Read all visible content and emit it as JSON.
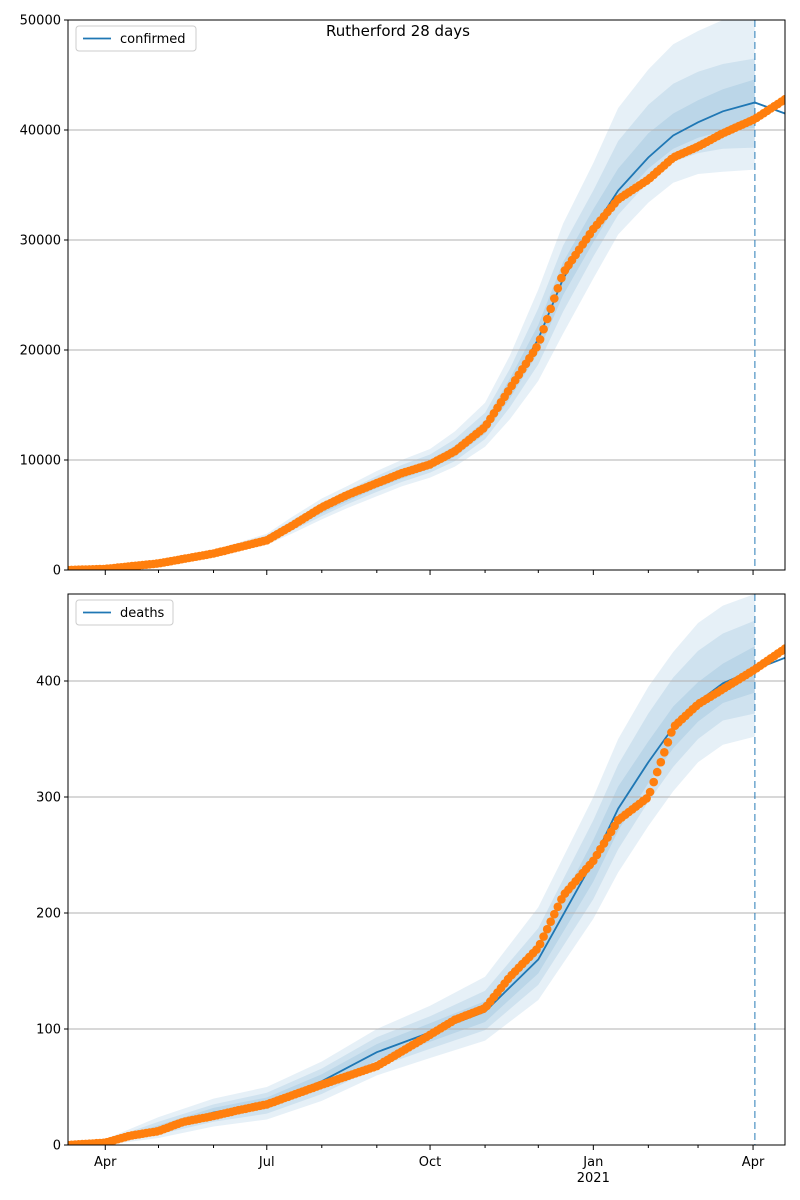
{
  "suptitle": "Rutherford 28 days",
  "colors": {
    "model": "#1f77b4",
    "observed": "#ff7f0e",
    "band": "#1f77b4",
    "grid": "#b0b0b0",
    "forecast_line": "#1f77b4"
  },
  "x_axis": {
    "range": [
      "2020-03-11",
      "2021-04-19"
    ],
    "major_ticks": [
      {
        "date": "2020-04-01",
        "label": "Apr"
      },
      {
        "date": "2020-07-01",
        "label": "Jul"
      },
      {
        "date": "2020-10-01",
        "label": "Oct"
      },
      {
        "date": "2021-01-01",
        "label": "Jan"
      },
      {
        "date": "2021-04-01",
        "label": "Apr"
      }
    ],
    "year_label": {
      "date": "2021-01-01",
      "label": "2021"
    }
  },
  "forecast_start": "2021-04-02",
  "chart_data": [
    {
      "type": "line",
      "legend": "confirmed",
      "legend_position": "top-left",
      "ylim": [
        0,
        50000
      ],
      "yticks": [
        "0",
        "10000",
        "20000",
        "30000",
        "40000",
        "50000"
      ],
      "grid": "horizontal",
      "model": {
        "x": [
          "2020-03-11",
          "2020-04-01",
          "2020-05-01",
          "2020-06-01",
          "2020-07-01",
          "2020-07-15",
          "2020-08-01",
          "2020-08-15",
          "2020-09-01",
          "2020-09-15",
          "2020-10-01",
          "2020-10-15",
          "2020-11-01",
          "2020-11-15",
          "2020-12-01",
          "2020-12-15",
          "2021-01-01",
          "2021-01-15",
          "2021-02-01",
          "2021-02-15",
          "2021-03-01",
          "2021-03-15",
          "2021-04-02",
          "2021-04-19"
        ],
        "y": [
          0,
          100,
          600,
          1500,
          2800,
          4000,
          5500,
          6500,
          7800,
          8700,
          9600,
          10800,
          13000,
          16500,
          21000,
          26500,
          31000,
          34500,
          37500,
          39500,
          40700,
          41700,
          42500,
          41500
        ],
        "bands": [
          {
            "lower": [
              0,
              50,
              450,
              1200,
              2300,
              3300,
              4600,
              5600,
              6700,
              7600,
              8400,
              9400,
              11200,
              13700,
              17200,
              21500,
              26500,
              30500,
              33400,
              35200,
              36000,
              36200,
              36400,
              null
            ],
            "upper": [
              0,
              160,
              780,
              1800,
              3300,
              4800,
              6500,
              7600,
              9000,
              10000,
              11000,
              12600,
              15200,
              19500,
              25500,
              31500,
              37000,
              42000,
              45500,
              47800,
              49000,
              50000,
              50500,
              null
            ]
          },
          {
            "lower": [
              0,
              65,
              500,
              1300,
              2450,
              3550,
              4900,
              5950,
              7100,
              8000,
              8850,
              9900,
              11900,
              14800,
              18700,
              23500,
              28500,
              32300,
              35300,
              37100,
              37900,
              38300,
              38400,
              null
            ],
            "upper": [
              0,
              140,
              720,
              1700,
              3150,
              4500,
              6100,
              7200,
              8550,
              9550,
              10500,
              11900,
              14300,
              18300,
              23800,
              29500,
              34500,
              39000,
              42300,
              44200,
              45300,
              46000,
              46500,
              null
            ]
          },
          {
            "lower": [
              0,
              80,
              550,
              1400,
              2600,
              3750,
              5150,
              6200,
              7450,
              8300,
              9200,
              10300,
              12400,
              15600,
              19800,
              25000,
              29800,
              33500,
              36500,
              38300,
              39300,
              39900,
              40200,
              null
            ],
            "upper": [
              0,
              120,
              660,
              1600,
              3000,
              4250,
              5850,
              6850,
              8150,
              9100,
              10000,
              11300,
              13600,
              17400,
              22300,
              28000,
              32800,
              36500,
              39700,
              41500,
              42700,
              43700,
              44600,
              null
            ]
          }
        ]
      },
      "observed": {
        "x": [
          "2020-03-11",
          "2020-04-01",
          "2020-05-01",
          "2020-06-01",
          "2020-07-01",
          "2020-07-15",
          "2020-08-01",
          "2020-08-15",
          "2020-09-01",
          "2020-09-15",
          "2020-10-01",
          "2020-10-15",
          "2020-11-01",
          "2020-11-15",
          "2020-12-01",
          "2020-12-15",
          "2021-01-01",
          "2021-01-15",
          "2021-02-01",
          "2021-02-15",
          "2021-03-01",
          "2021-03-15",
          "2021-04-02",
          "2021-04-19"
        ],
        "y": [
          0,
          100,
          600,
          1500,
          2700,
          4000,
          5700,
          6800,
          7900,
          8800,
          9600,
          10800,
          13000,
          16500,
          20500,
          27000,
          31000,
          33700,
          35500,
          37500,
          38500,
          39700,
          41000,
          42800
        ]
      }
    },
    {
      "type": "line",
      "legend": "deaths",
      "legend_position": "top-left",
      "ylim": [
        0,
        475
      ],
      "yticks": [
        "0",
        "100",
        "200",
        "300",
        "400"
      ],
      "grid": "horizontal",
      "model": {
        "x": [
          "2020-03-11",
          "2020-04-01",
          "2020-05-01",
          "2020-06-01",
          "2020-07-01",
          "2020-08-01",
          "2020-09-01",
          "2020-10-01",
          "2020-11-01",
          "2020-12-01",
          "2021-01-01",
          "2021-01-15",
          "2021-02-01",
          "2021-02-15",
          "2021-03-01",
          "2021-03-15",
          "2021-04-02",
          "2021-04-19"
        ],
        "y": [
          0,
          2,
          14,
          28,
          36,
          55,
          80,
          97,
          115,
          160,
          245,
          290,
          330,
          360,
          382,
          398,
          410,
          420
        ],
        "bands": [
          {
            "lower": [
              0,
              0,
              6,
              16,
              22,
              38,
              60,
              75,
              90,
              125,
              195,
              235,
              275,
              305,
              330,
              345,
              352,
              null
            ],
            "upper": [
              0,
              5,
              24,
              40,
              50,
              72,
              100,
              120,
              145,
              205,
              300,
              350,
              395,
              425,
              450,
              465,
              475,
              null
            ]
          },
          {
            "lower": [
              0,
              1,
              9,
              20,
              27,
              44,
              67,
              83,
              99,
              138,
              212,
              255,
              296,
              326,
              350,
              366,
              372,
              null
            ],
            "upper": [
              0,
              4,
              20,
              35,
              45,
              66,
              93,
              111,
              133,
              187,
              280,
              328,
              372,
              403,
              426,
              441,
              452,
              null
            ]
          },
          {
            "lower": [
              0,
              1,
              11,
              24,
              31,
              49,
              73,
              89,
              106,
              148,
              227,
              271,
              312,
              342,
              365,
              381,
              390,
              null
            ],
            "upper": [
              0,
              3,
              17,
              32,
              41,
              61,
              87,
              105,
              124,
              172,
              263,
              309,
              348,
              378,
              399,
              415,
              430,
              null
            ]
          }
        ]
      },
      "observed": {
        "x": [
          "2020-03-11",
          "2020-04-01",
          "2020-04-15",
          "2020-05-01",
          "2020-05-15",
          "2020-06-01",
          "2020-06-15",
          "2020-07-01",
          "2020-08-01",
          "2020-09-01",
          "2020-10-01",
          "2020-10-15",
          "2020-11-01",
          "2020-11-15",
          "2020-12-01",
          "2020-12-15",
          "2021-01-01",
          "2021-01-15",
          "2021-02-01",
          "2021-02-15",
          "2021-03-01",
          "2021-03-15",
          "2021-04-02",
          "2021-04-19"
        ],
        "y": [
          0,
          2,
          8,
          12,
          20,
          25,
          30,
          35,
          52,
          68,
          95,
          108,
          118,
          145,
          170,
          215,
          245,
          280,
          300,
          360,
          380,
          393,
          410,
          428
        ]
      }
    }
  ]
}
